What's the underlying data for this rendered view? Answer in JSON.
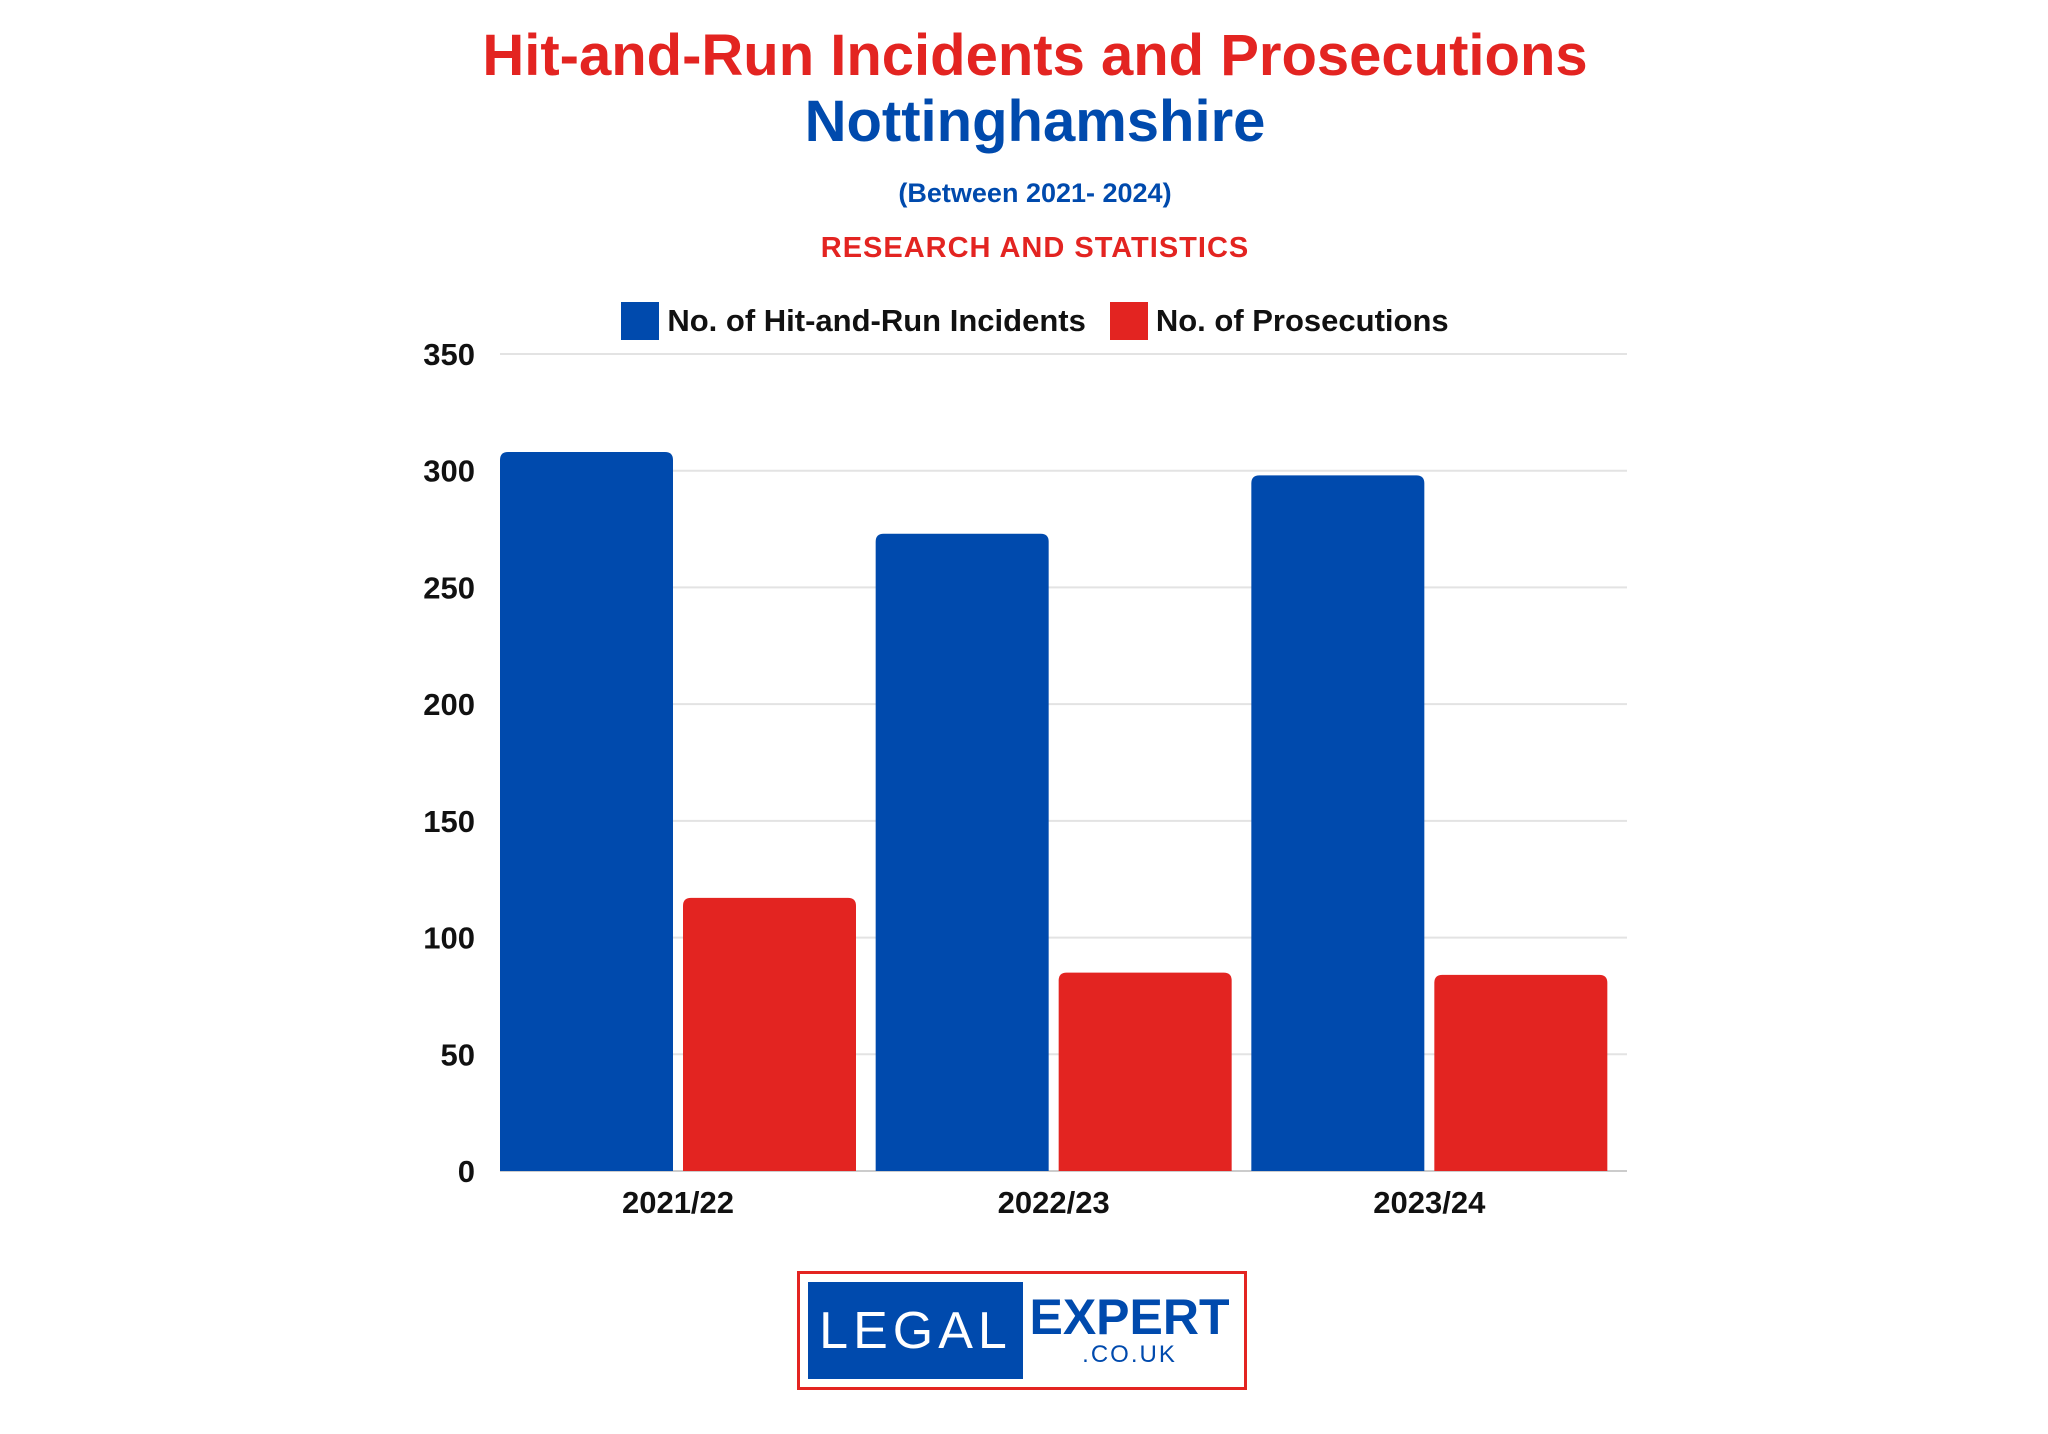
{
  "chart_data": {
    "type": "bar",
    "title": "Hit-and-Run Incidents and Prosecutions",
    "subtitle": "Nottinghamshire",
    "period": "(Between 2021- 2024)",
    "tagline": "RESEARCH AND STATISTICS",
    "categories": [
      "2021/22",
      "2022/23",
      "2023/24"
    ],
    "series": [
      {
        "name": "No. of Hit-and-Run Incidents",
        "color": "#004aad",
        "values": [
          308,
          273,
          298
        ]
      },
      {
        "name": "No. of Prosecutions",
        "color": "#e32421",
        "values": [
          117,
          85,
          84
        ]
      }
    ],
    "ylim": [
      0,
      350
    ],
    "yticks": [
      0,
      50,
      100,
      150,
      200,
      250,
      300,
      350
    ],
    "xlabel": "",
    "ylabel": "",
    "grid": true,
    "legend": "top"
  },
  "logo": {
    "left": "LEGAL",
    "right": "EXPERT",
    "domain": ".CO.UK"
  }
}
